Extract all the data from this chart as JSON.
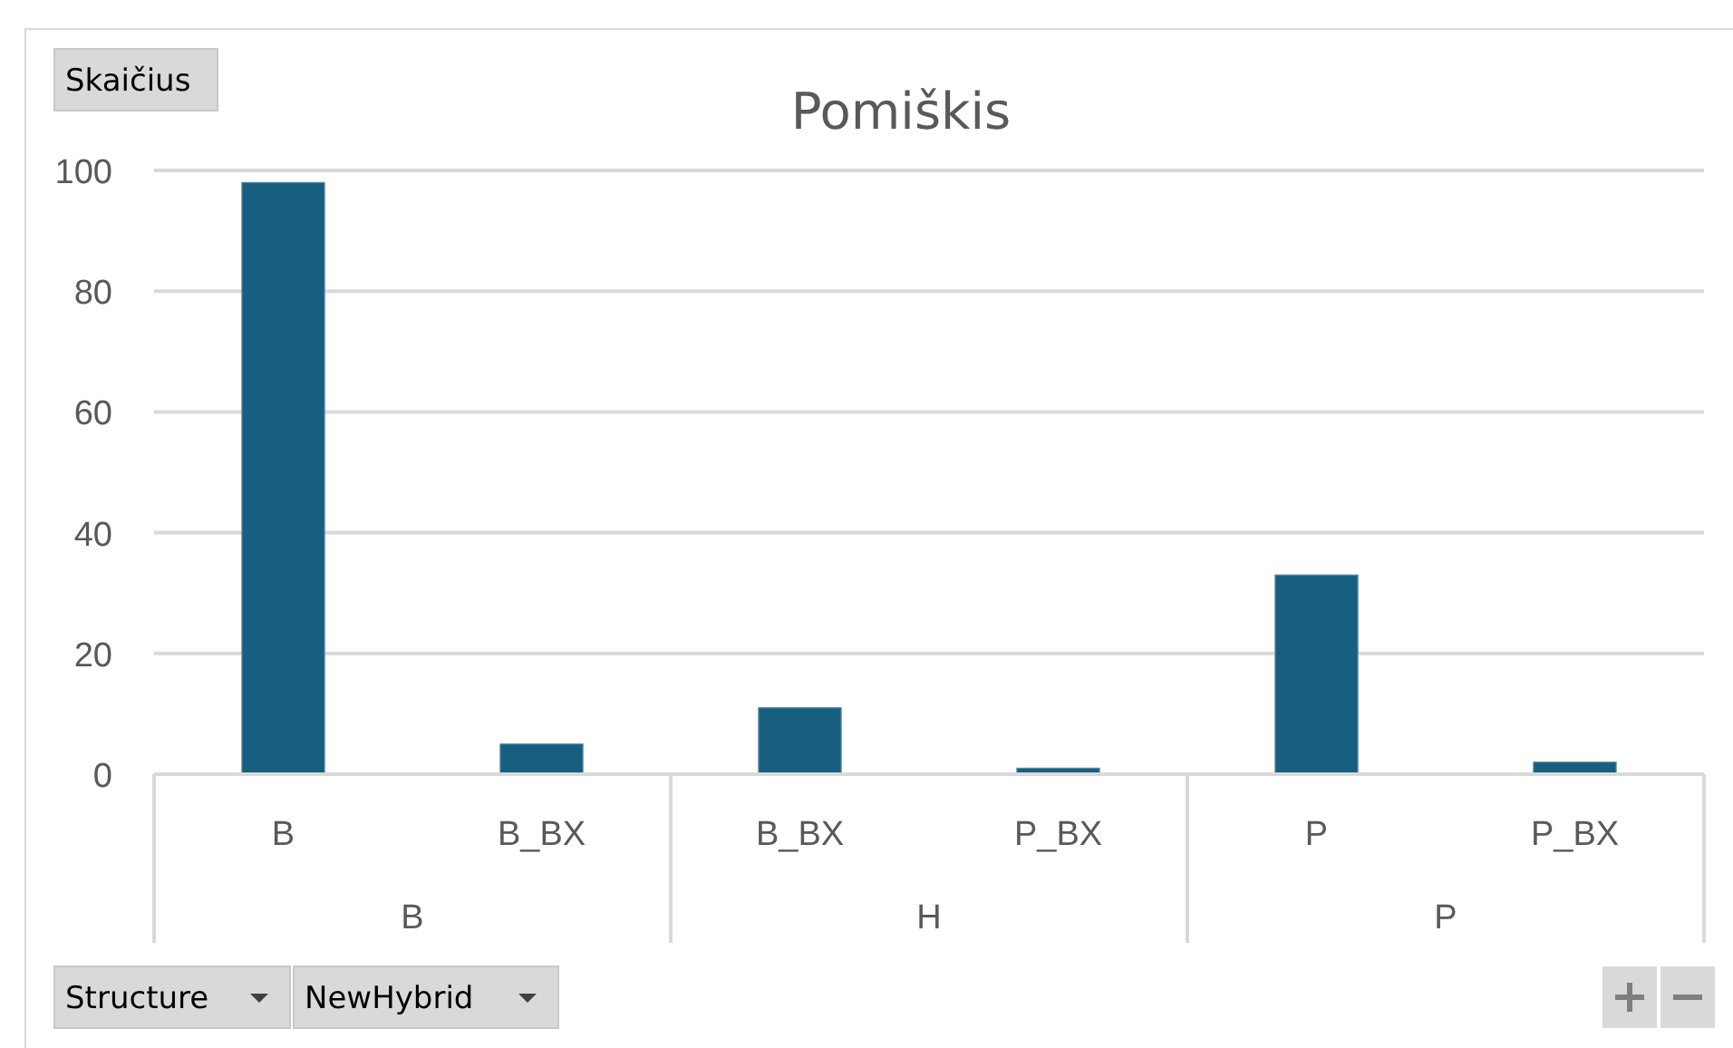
{
  "chart_data": {
    "type": "bar",
    "title": "Pomiškis",
    "ylabel": "Skaičius",
    "categories": [
      "B",
      "B_BX",
      "B_BX",
      "P_BX",
      "P",
      "P_BX"
    ],
    "series": [
      {
        "color": "#175e80",
        "values": [
          98,
          5,
          11,
          1,
          33,
          2
        ]
      }
    ],
    "ylim": [
      0,
      100
    ],
    "yticks": [
      0,
      20,
      40,
      60,
      80,
      100
    ],
    "grid": "y",
    "annotations": [
      "B",
      "H",
      "P",
      "Structure",
      "NewHybrid"
    ]
  }
}
